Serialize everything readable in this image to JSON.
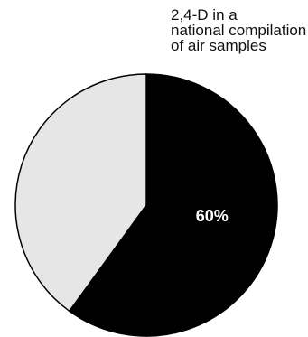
{
  "chart_data": {
    "type": "pie",
    "title_lines": [
      "2,4-D in a",
      "national compilation",
      "of air samples"
    ],
    "slices": [
      {
        "label": "60%",
        "value": 60,
        "color": "#000000",
        "label_color": "#ffffff"
      },
      {
        "label": "",
        "value": 40,
        "color": "#e6e6e6",
        "label_color": "#000000"
      }
    ],
    "start_angle_deg": 0,
    "direction": "clockwise",
    "stroke_color": "#000000"
  }
}
